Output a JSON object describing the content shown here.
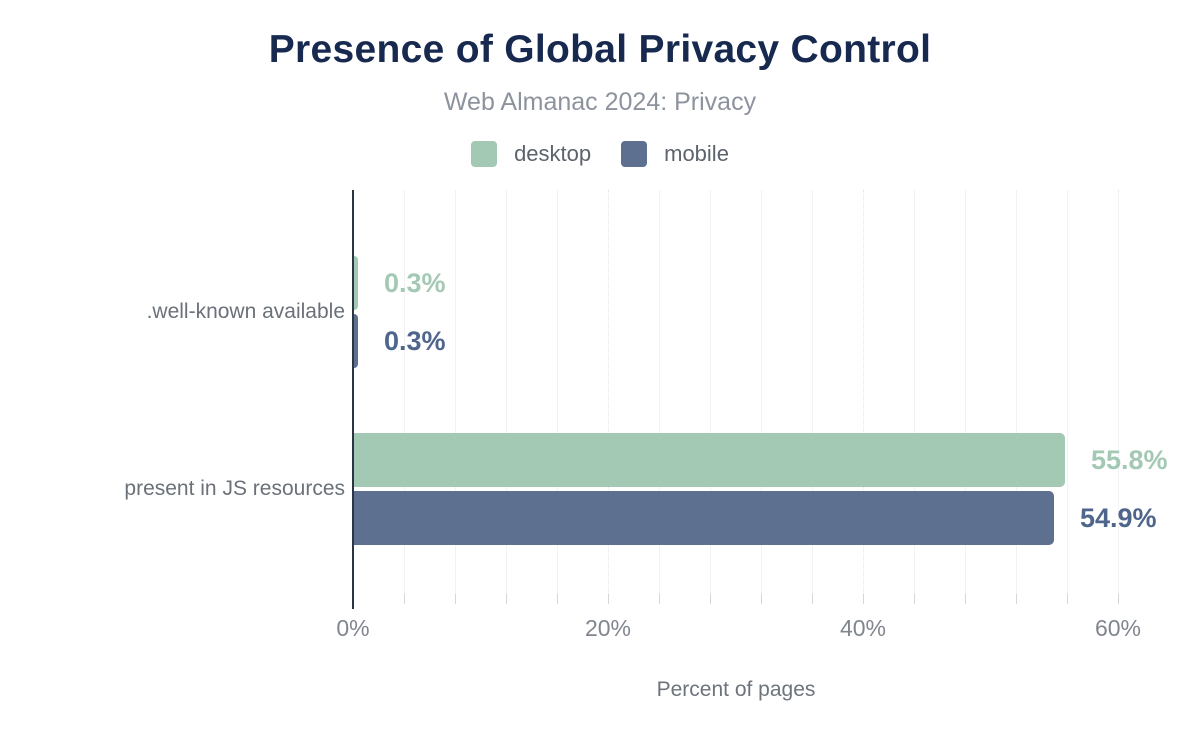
{
  "chart_data": {
    "type": "bar",
    "orientation": "horizontal",
    "title": "Presence of Global Privacy Control",
    "subtitle": "Web Almanac 2024: Privacy",
    "xlabel": "Percent of pages",
    "categories": [
      ".well-known available",
      "present in JS resources"
    ],
    "series": [
      {
        "name": "desktop",
        "values": [
          0.3,
          55.8
        ],
        "value_labels": [
          "0.3%",
          "55.8%"
        ],
        "color": "#a3c9b5",
        "label_color": "#a3c9b5"
      },
      {
        "name": "mobile",
        "values": [
          0.3,
          54.9
        ],
        "value_labels": [
          "0.3%",
          "54.9%"
        ],
        "color": "#5d7090",
        "label_color": "#4f668c"
      }
    ],
    "x_ticks": [
      {
        "label": "0%",
        "value": 0
      },
      {
        "label": "20%",
        "value": 20
      },
      {
        "label": "40%",
        "value": 40
      },
      {
        "label": "60%",
        "value": 60
      }
    ],
    "xlim": [
      0,
      65
    ],
    "grid": {
      "minor_step_pct": 4,
      "major_step_pct": 20,
      "grid_on": true
    },
    "legend_position": "top",
    "colors": {
      "title": "#17294f",
      "subtitle": "#8d939d",
      "legend_label": "#5c636c",
      "category_label": "#6b7179",
      "tick_label": "#81868e",
      "axis_title": "#6e747c",
      "axis_line": "#2d3545",
      "minor_gridline": "#f2f2f3",
      "major_gridline": "#e4e6e9",
      "tick_mark": "#d5d8db",
      "background": "#ffffff"
    }
  }
}
